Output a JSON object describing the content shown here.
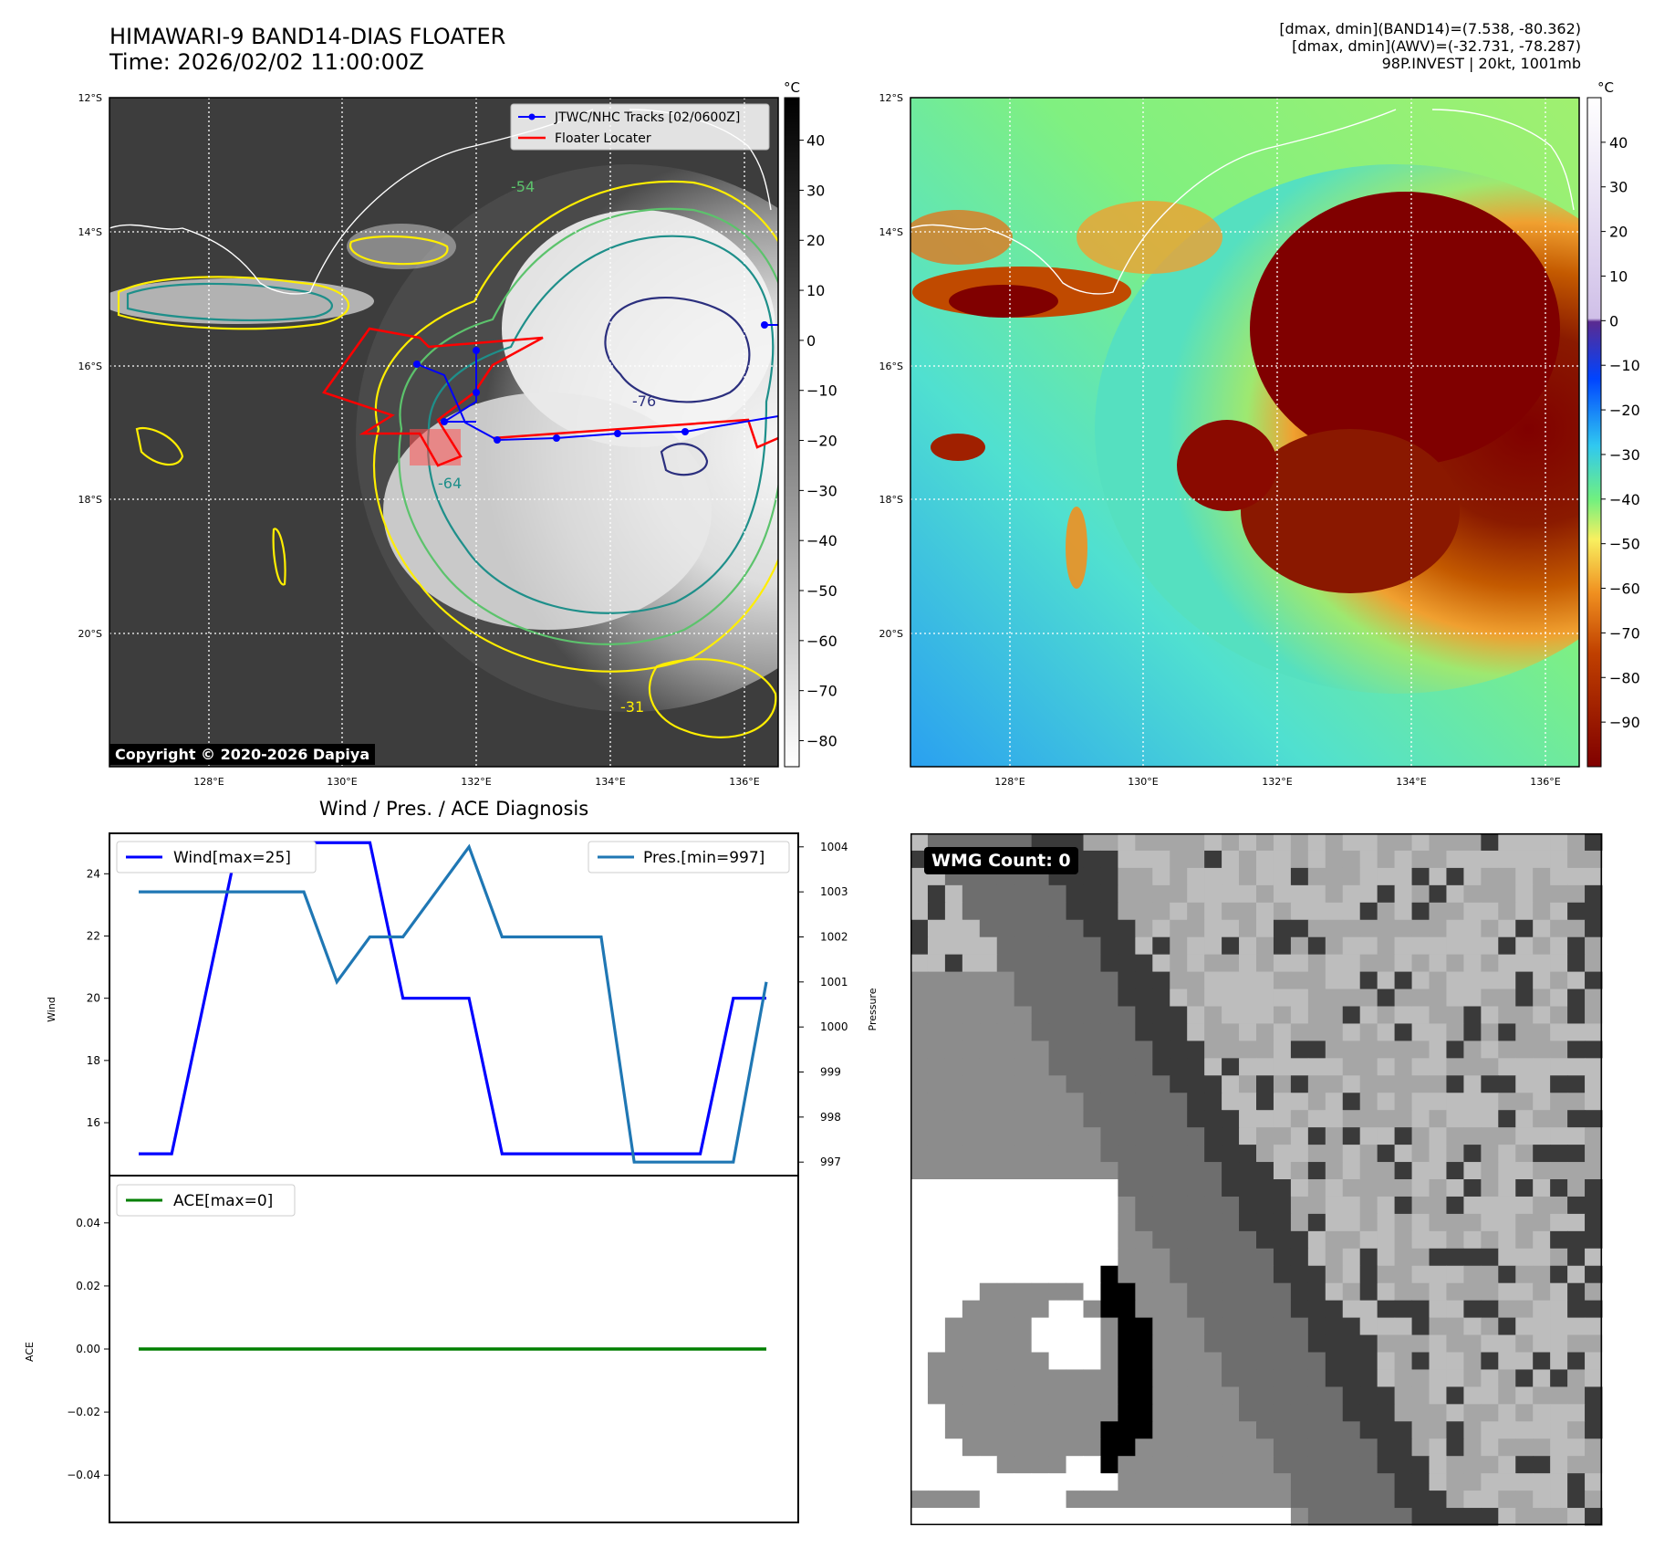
{
  "header": {
    "title_line1": "HIMAWARI-9 BAND14-DIAS FLOATER",
    "title_line2": "Time: 2026/02/02 11:00:00Z",
    "info_line1": "[dmax, dmin](BAND14)=(7.538, -80.362)",
    "info_line2": "[dmax, dmin](AWV)=(-32.731, -78.287)",
    "info_line3": "98P.INVEST | 20kt, 1001mb"
  },
  "maps": {
    "lat_labels": [
      "12°S",
      "14°S",
      "16°S",
      "18°S",
      "20°S"
    ],
    "lon_labels": [
      "128°E",
      "130°E",
      "132°E",
      "134°E",
      "136°E"
    ],
    "colorbar_unit": "°C",
    "gray_colorbar_ticks": [
      40,
      30,
      20,
      10,
      0,
      -10,
      -20,
      -30,
      -40,
      -50,
      -60,
      -70,
      -80
    ],
    "color_colorbar_ticks": [
      40,
      30,
      20,
      10,
      0,
      -10,
      -20,
      -30,
      -40,
      -50,
      -60,
      -70,
      -80,
      -90
    ],
    "contour_labels": [
      "-54",
      "-31",
      "-64",
      "-76"
    ],
    "legend": {
      "tracks": "JTWC/NHC Tracks [02/0600Z]",
      "locater": "Floater Locater"
    },
    "copyright": "Copyright © 2020-2026 Dapiya",
    "colors": {
      "track": "#0000ff",
      "locater": "#ff0000",
      "contour_31": "#ffee00",
      "contour_54": "#5cc36c",
      "contour_64": "#1e8f8a",
      "contour_76": "#2b2f7e"
    }
  },
  "diagnosis": {
    "title": "Wind / Pres. / ACE Diagnosis",
    "wind_axis_label": "Wind",
    "pressure_axis_label": "Pressure",
    "ace_axis_label": "ACE",
    "wind_legend": "Wind[max=25]",
    "pres_legend": "Pres.[min=997]",
    "ace_legend": "ACE[max=0]",
    "colors": {
      "wind": "#0000ff",
      "pressure": "#1f77b4",
      "ace": "#007f00"
    }
  },
  "wmg": {
    "label": "WMG Count: 0"
  },
  "chart_data": [
    {
      "type": "line",
      "title": "Wind / Pres. / ACE Diagnosis",
      "ylabel": "Wind",
      "y2label": "Pressure",
      "x": [
        0,
        1,
        2,
        3,
        4,
        5,
        6,
        7,
        8,
        9,
        10,
        11,
        12,
        13,
        14,
        15,
        16,
        17,
        18,
        19
      ],
      "series": [
        {
          "name": "Wind[max=25]",
          "axis": "left",
          "values": [
            15,
            15,
            20,
            25,
            25,
            25,
            25,
            25,
            20,
            20,
            20,
            15,
            15,
            15,
            15,
            15,
            15,
            15,
            20,
            20
          ]
        },
        {
          "name": "Pres.[min=997]",
          "axis": "right",
          "values": [
            1003,
            1003,
            1003,
            1003,
            1003,
            1003,
            1001,
            1002,
            1002,
            1003,
            1004,
            1002,
            1002,
            1002,
            1002,
            997,
            997,
            997,
            997,
            1001
          ]
        }
      ],
      "ylim": [
        14.3,
        25.3
      ],
      "y2lim": [
        996.7,
        1004.3
      ],
      "yticks": [
        16,
        18,
        20,
        22,
        24
      ],
      "y2ticks": [
        997,
        998,
        999,
        1000,
        1001,
        1002,
        1003,
        1004
      ]
    },
    {
      "type": "line",
      "ylabel": "ACE",
      "x": [
        0,
        19
      ],
      "series": [
        {
          "name": "ACE[max=0]",
          "values": [
            0,
            0
          ]
        }
      ],
      "ylim": [
        -0.055,
        0.055
      ],
      "yticks": [
        0.04,
        0.02,
        0.0,
        -0.02,
        -0.04
      ],
      "ytick_labels": [
        "0.04",
        "0.02",
        "0.00",
        "−0.02",
        "−0.04"
      ]
    }
  ]
}
